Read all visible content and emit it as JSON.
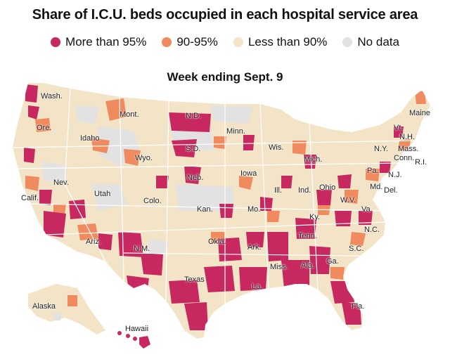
{
  "title": "Share of I.C.U. beds occupied in each hospital service area",
  "legend": [
    {
      "label": "More than 95%",
      "color": "#c7285f"
    },
    {
      "label": "90-95%",
      "color": "#f08a5f"
    },
    {
      "label": "Less than 90%",
      "color": "#f3e4c8"
    },
    {
      "label": "No data",
      "color": "#e2e2e2"
    }
  ],
  "subtitle": "Week ending Sept. 9",
  "colors": {
    "high": "#c7285f",
    "mid": "#f08a5f",
    "low": "#f3e4c8",
    "none": "#e2e2e2",
    "border": "#ffffff"
  },
  "labels": {
    "wash": "Wash.",
    "ore": "Ore.",
    "idaho": "Idaho",
    "mont": "Mont.",
    "wyo": "Wyo.",
    "nd": "N.D.",
    "sd": "S.D.",
    "minn": "Minn.",
    "wis": "Wis.",
    "mich": "Mich.",
    "maine": "Maine",
    "vt": "Vt.",
    "nh": "N.H.",
    "ny": "N.Y.",
    "mass": "Mass.",
    "conn": "Conn.",
    "ri": "R.I.",
    "pa": "Pa.",
    "nj": "N.J.",
    "md": "Md.",
    "del": "Del.",
    "nev": "Nev.",
    "utah": "Utah",
    "calif": "Calif.",
    "colo": "Colo.",
    "neb": "Neb.",
    "iowa": "Iowa",
    "ill": "Ill.",
    "ind": "Ind.",
    "ohio": "Ohio",
    "wv": "W.V.",
    "va": "Va.",
    "kan": "Kan.",
    "mo": "Mo.",
    "ky": "Ky.",
    "tenn": "Tenn.",
    "nc": "N.C.",
    "sc": "S.C.",
    "ariz": "Ariz.",
    "nm": "N.M.",
    "okla": "Okla.",
    "ark": "Ark.",
    "miss": "Miss.",
    "ala": "Ala.",
    "ga": "Ga.",
    "texas": "Texas",
    "la": "La.",
    "fla": "Fla.",
    "alaska": "Alaska",
    "hawaii": "Hawaii"
  }
}
